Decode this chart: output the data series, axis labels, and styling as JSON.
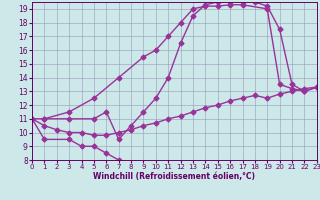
{
  "xlabel": "Windchill (Refroidissement éolien,°C)",
  "xlim": [
    0,
    23
  ],
  "ylim": [
    8,
    19.5
  ],
  "xticks": [
    0,
    1,
    2,
    3,
    4,
    5,
    6,
    7,
    8,
    9,
    10,
    11,
    12,
    13,
    14,
    15,
    16,
    17,
    18,
    19,
    20,
    21,
    22,
    23
  ],
  "yticks": [
    8,
    9,
    10,
    11,
    12,
    13,
    14,
    15,
    16,
    17,
    18,
    19
  ],
  "bg_color": "#cce8e8",
  "line_color": "#993399",
  "marker": "D",
  "markersize": 2.5,
  "linewidth": 1.0,
  "line_A": {
    "x": [
      0,
      1,
      3,
      4,
      5,
      6,
      7
    ],
    "y": [
      11,
      9.5,
      9.5,
      9.0,
      9.0,
      8.5,
      8.0
    ]
  },
  "line_B": {
    "x": [
      1,
      3,
      5,
      7,
      9,
      10,
      11,
      12,
      13,
      14,
      15,
      16,
      17,
      19,
      20,
      21,
      22,
      23
    ],
    "y": [
      11,
      11.5,
      12.5,
      14.0,
      15.5,
      16.0,
      17.0,
      18.0,
      19.0,
      19.2,
      19.2,
      19.3,
      19.3,
      19.0,
      13.5,
      13.2,
      13.0,
      13.3
    ]
  },
  "line_C": {
    "x": [
      0,
      1,
      3,
      5,
      6,
      7,
      8,
      9,
      10,
      11,
      12,
      13,
      14,
      15,
      16,
      17,
      18,
      19,
      20,
      21,
      22,
      23
    ],
    "y": [
      11,
      11,
      11,
      11,
      11.5,
      9.5,
      10.5,
      11.5,
      12.5,
      14.0,
      16.5,
      18.5,
      19.3,
      19.5,
      19.5,
      19.5,
      19.5,
      19.2,
      17.5,
      13.5,
      13.0,
      13.3
    ]
  },
  "line_D": {
    "x": [
      0,
      1,
      2,
      3,
      4,
      5,
      6,
      7,
      8,
      9,
      10,
      11,
      12,
      13,
      14,
      15,
      16,
      17,
      18,
      19,
      20,
      21,
      22,
      23
    ],
    "y": [
      11,
      10.5,
      10.2,
      10.0,
      10.0,
      9.8,
      9.8,
      10.0,
      10.2,
      10.5,
      10.7,
      11.0,
      11.2,
      11.5,
      11.8,
      12.0,
      12.3,
      12.5,
      12.7,
      12.5,
      12.8,
      13.0,
      13.2,
      13.3
    ]
  }
}
